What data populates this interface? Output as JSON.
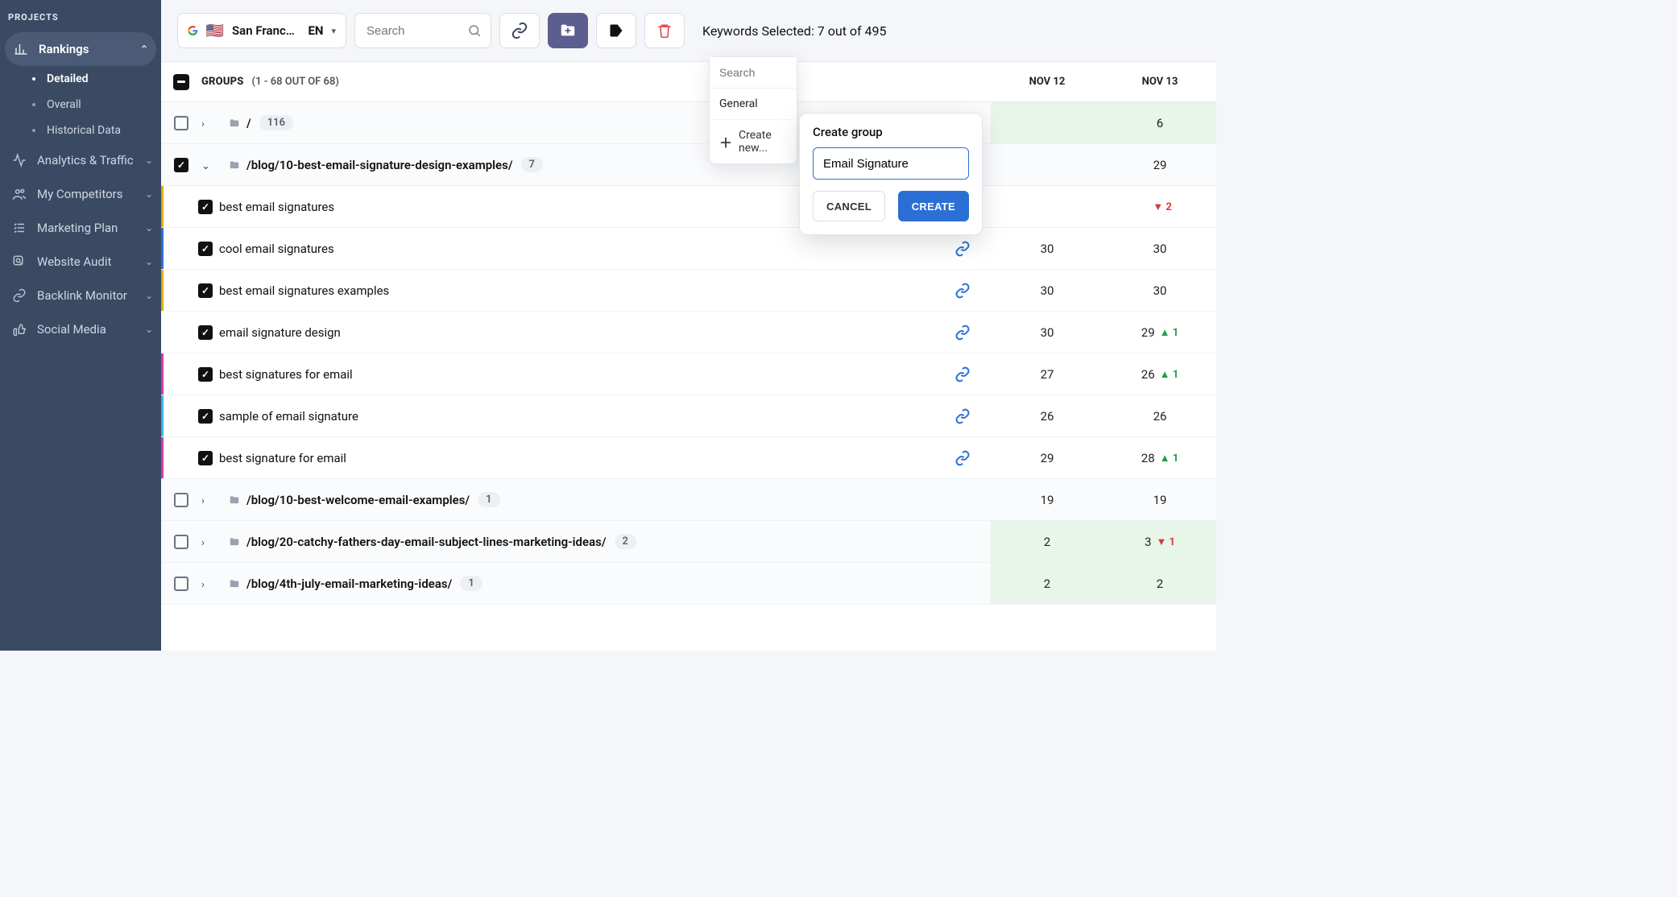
{
  "sidebar": {
    "header": "PROJECTS",
    "rankings": {
      "label": "Rankings",
      "items": [
        {
          "label": "Detailed",
          "selected": true
        },
        {
          "label": "Overall"
        },
        {
          "label": "Historical Data"
        }
      ]
    },
    "nav": [
      {
        "label": "Analytics & Traffic",
        "icon": "activity"
      },
      {
        "label": "My Competitors",
        "icon": "people"
      },
      {
        "label": "Marketing Plan",
        "icon": "checklist"
      },
      {
        "label": "Website Audit",
        "icon": "magnify"
      },
      {
        "label": "Backlink Monitor",
        "icon": "link"
      },
      {
        "label": "Social Media",
        "icon": "thumbs"
      }
    ]
  },
  "toolbar": {
    "location": "San Francisco, ...",
    "language": "EN",
    "search_placeholder": "Search",
    "keywords_selected_label": "Keywords Selected: 7 out of 495"
  },
  "folder_dropdown": {
    "search_placeholder": "Search",
    "items": [
      "General"
    ],
    "create_label": "Create new..."
  },
  "create_group": {
    "title": "Create group",
    "value": "Email Signature",
    "cancel": "CANCEL",
    "create": "CREATE"
  },
  "table": {
    "groups_label": "GROUPS",
    "groups_count": "(1 - 68 OUT OF 68)",
    "date_cols": [
      "NOV 12",
      "NOV 13"
    ]
  },
  "colors": {
    "sidebar_bg": "#3a4a63",
    "accent": "#2b6fd6",
    "folder_btn": "#5b5e8f",
    "hi_green_bg": "#e7f6e9",
    "delta_up": "#1f9d4d",
    "delta_down": "#d23b3b",
    "stripes": {
      "yellow": "#d8b400",
      "blue": "#2b6fd6",
      "magenta": "#d63aa9",
      "cyan": "#37b6e6"
    }
  },
  "rows": [
    {
      "type": "hdr",
      "label": "/",
      "count": "116",
      "checked": false,
      "expanded": false,
      "c1": {
        "v": "",
        "hi": true
      },
      "c2": {
        "v": "6",
        "hi": true
      }
    },
    {
      "type": "hdr",
      "label": "/blog/10-best-email-signature-design-examples/",
      "count": "7",
      "checked": true,
      "expanded": true,
      "c1": {
        "v": ""
      },
      "c2": {
        "v": "29"
      }
    },
    {
      "type": "kw",
      "label": "best email signatures",
      "checked": true,
      "link": true,
      "stripe": "#d8b400",
      "c1": {
        "v": ""
      },
      "c2": {
        "v": "",
        "delta": "2",
        "dir": "down"
      }
    },
    {
      "type": "kw",
      "label": "cool email signatures",
      "checked": true,
      "link": true,
      "stripe": "#2b6fd6",
      "c1": {
        "v": "30"
      },
      "c2": {
        "v": "30"
      }
    },
    {
      "type": "kw",
      "label": "best email signatures examples",
      "checked": true,
      "link": true,
      "stripe": "#d8b400",
      "c1": {
        "v": "30"
      },
      "c2": {
        "v": "30"
      }
    },
    {
      "type": "kw",
      "label": "email signature design",
      "checked": true,
      "link": true,
      "stripe": "",
      "c1": {
        "v": "30"
      },
      "c2": {
        "v": "29",
        "delta": "1",
        "dir": "up"
      }
    },
    {
      "type": "kw",
      "label": "best signatures for email",
      "checked": true,
      "link": true,
      "stripe": "#d63aa9",
      "c1": {
        "v": "27"
      },
      "c2": {
        "v": "26",
        "delta": "1",
        "dir": "up"
      }
    },
    {
      "type": "kw",
      "label": "sample of email signature",
      "checked": true,
      "link": true,
      "stripe": "#37b6e6",
      "c1": {
        "v": "26"
      },
      "c2": {
        "v": "26"
      }
    },
    {
      "type": "kw",
      "label": "best signature for email",
      "checked": true,
      "link": true,
      "stripe": "#d63aa9",
      "c1": {
        "v": "29"
      },
      "c2": {
        "v": "28",
        "delta": "1",
        "dir": "up"
      }
    },
    {
      "type": "hdr",
      "label": "/blog/10-best-welcome-email-examples/",
      "count": "1",
      "checked": false,
      "expanded": false,
      "c1": {
        "v": "19"
      },
      "c2": {
        "v": "19"
      }
    },
    {
      "type": "hdr",
      "label": "/blog/20-catchy-fathers-day-email-subject-lines-marketing-ideas/",
      "count": "2",
      "checked": false,
      "expanded": false,
      "c1": {
        "v": "2",
        "hi": true
      },
      "c2": {
        "v": "3",
        "hi": true,
        "delta": "1",
        "dir": "down"
      }
    },
    {
      "type": "hdr",
      "label": "/blog/4th-july-email-marketing-ideas/",
      "count": "1",
      "checked": false,
      "expanded": false,
      "c1": {
        "v": "2",
        "hi": true
      },
      "c2": {
        "v": "2",
        "hi": true
      }
    }
  ]
}
